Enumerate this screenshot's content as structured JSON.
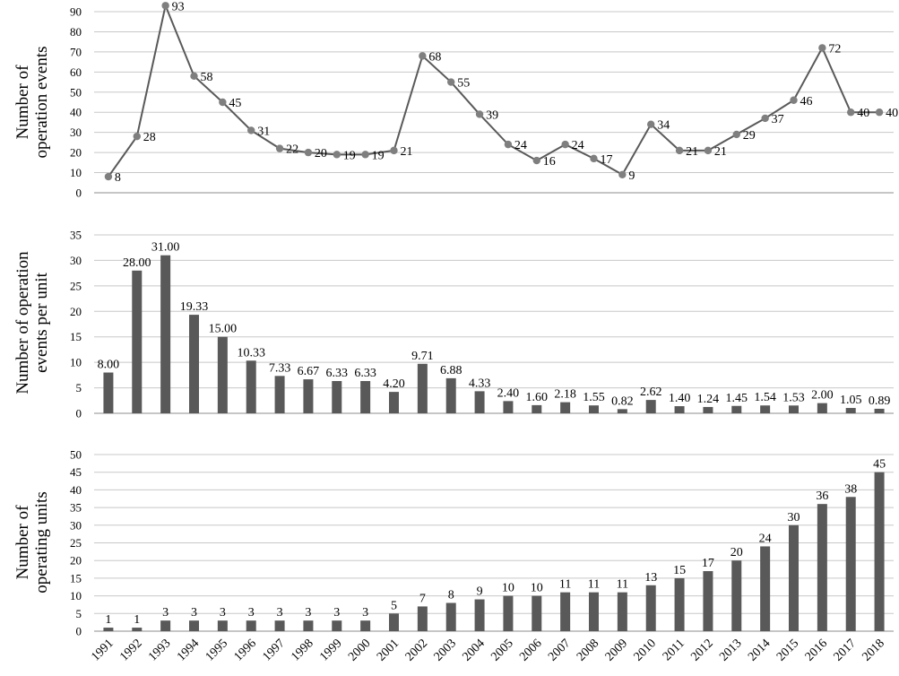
{
  "chart_data": [
    {
      "type": "line",
      "ylabel": [
        "Number of",
        "operation events"
      ],
      "ylim": [
        0,
        90
      ],
      "yticks": [
        0,
        10,
        20,
        30,
        40,
        50,
        60,
        70,
        80,
        90
      ],
      "grid": true,
      "categories": [
        "1991",
        "1992",
        "1993",
        "1994",
        "1995",
        "1996",
        "1997",
        "1998",
        "1999",
        "2000",
        "2001",
        "2002",
        "2003",
        "2004",
        "2005",
        "2006",
        "2007",
        "2008",
        "2009",
        "2010",
        "2011",
        "2012",
        "2013",
        "2014",
        "2015",
        "2016",
        "2017",
        "2018"
      ],
      "values": [
        8,
        28,
        93,
        58,
        45,
        31,
        22,
        20,
        19,
        19,
        21,
        68,
        55,
        39,
        24,
        16,
        24,
        17,
        9,
        34,
        21,
        21,
        29,
        37,
        46,
        72,
        40,
        40
      ],
      "labels": [
        "8",
        "28",
        "93",
        "58",
        "45",
        "31",
        "22",
        "20",
        "19",
        "19",
        "21",
        "68",
        "55",
        "39",
        "24",
        "16",
        "24",
        "17",
        "9",
        "34",
        "21",
        "21",
        "29",
        "37",
        "46",
        "72",
        "40",
        "40"
      ],
      "color": "#595959"
    },
    {
      "type": "bar",
      "ylabel": [
        "Number of operation",
        "events per unit"
      ],
      "ylim": [
        0,
        35
      ],
      "yticks": [
        0,
        5,
        10,
        15,
        20,
        25,
        30,
        35
      ],
      "grid": true,
      "categories": [
        "1991",
        "1992",
        "1993",
        "1994",
        "1995",
        "1996",
        "1997",
        "1998",
        "1999",
        "2000",
        "2001",
        "2002",
        "2003",
        "2004",
        "2005",
        "2006",
        "2007",
        "2008",
        "2009",
        "2010",
        "2011",
        "2012",
        "2013",
        "2014",
        "2015",
        "2016",
        "2017",
        "2018"
      ],
      "values": [
        8.0,
        28.0,
        31.0,
        19.33,
        15.0,
        10.33,
        7.33,
        6.67,
        6.33,
        6.33,
        4.2,
        9.71,
        6.88,
        4.33,
        2.4,
        1.6,
        2.18,
        1.55,
        0.82,
        2.62,
        1.4,
        1.24,
        1.45,
        1.54,
        1.53,
        2.0,
        1.05,
        0.89
      ],
      "labels": [
        "8.00",
        "28.00",
        "31.00",
        "19.33",
        "15.00",
        "10.33",
        "7.33",
        "6.67",
        "6.33",
        "6.33",
        "4.20",
        "9.71",
        "6.88",
        "4.33",
        "2.40",
        "1.60",
        "2.18",
        "1.55",
        "0.82",
        "2.62",
        "1.40",
        "1.24",
        "1.45",
        "1.54",
        "1.53",
        "2.00",
        "1.05",
        "0.89"
      ],
      "color": "#595959"
    },
    {
      "type": "bar",
      "ylabel": [
        "Number of",
        "operating units"
      ],
      "ylim": [
        0,
        50
      ],
      "yticks": [
        0,
        5,
        10,
        15,
        20,
        25,
        30,
        35,
        40,
        45,
        50
      ],
      "grid": true,
      "categories": [
        "1991",
        "1992",
        "1993",
        "1994",
        "1995",
        "1996",
        "1997",
        "1998",
        "1999",
        "2000",
        "2001",
        "2002",
        "2003",
        "2004",
        "2005",
        "2006",
        "2007",
        "2008",
        "2009",
        "2010",
        "2011",
        "2012",
        "2013",
        "2014",
        "2015",
        "2016",
        "2017",
        "2018"
      ],
      "values": [
        1,
        1,
        3,
        3,
        3,
        3,
        3,
        3,
        3,
        3,
        5,
        7,
        8,
        9,
        10,
        10,
        11,
        11,
        11,
        13,
        15,
        17,
        20,
        24,
        30,
        36,
        38,
        45
      ],
      "labels": [
        "1",
        "1",
        "3",
        "3",
        "3",
        "3",
        "3",
        "3",
        "3",
        "3",
        "5",
        "7",
        "8",
        "9",
        "10",
        "10",
        "11",
        "11",
        "11",
        "13",
        "15",
        "17",
        "20",
        "24",
        "30",
        "36",
        "38",
        "45"
      ],
      "color": "#595959"
    }
  ]
}
